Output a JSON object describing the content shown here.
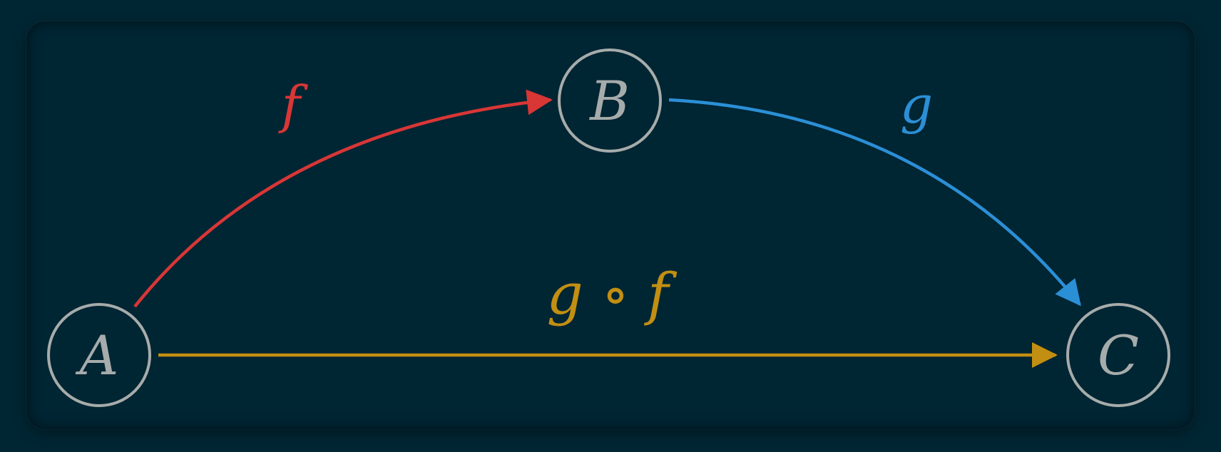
{
  "diagram": {
    "nodes": [
      {
        "id": "A",
        "label": "A"
      },
      {
        "id": "B",
        "label": "B"
      },
      {
        "id": "C",
        "label": "C"
      }
    ],
    "edges": [
      {
        "id": "f",
        "from": "A",
        "to": "B",
        "label": "f",
        "color": "#d93636"
      },
      {
        "id": "g",
        "from": "B",
        "to": "C",
        "label": "g",
        "color": "#2b8fd6"
      },
      {
        "id": "gf",
        "from": "A",
        "to": "C",
        "label": "g ∘ f",
        "color": "#c28f12"
      }
    ],
    "node_stroke": "#a6acab",
    "background": "#002633"
  }
}
